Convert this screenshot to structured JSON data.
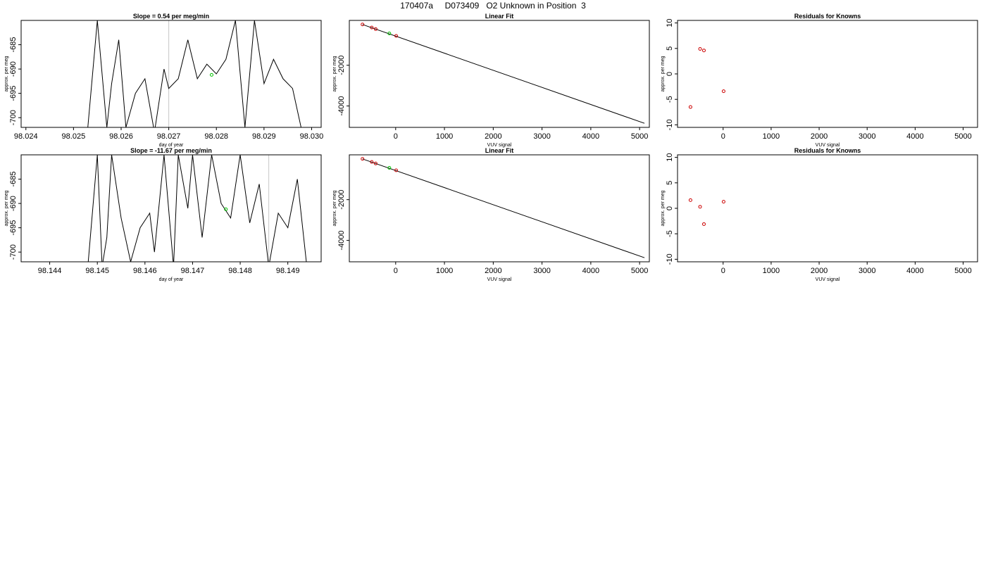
{
  "page": {
    "title": "170407a     D073409   O2 Unknown in Position  3"
  },
  "chart_data": [
    {
      "type": "line",
      "title": "Slope =   0.54  per meg/min",
      "xlabel": "day of year",
      "ylabel": "approx. per meg",
      "xlim": [
        98.0239,
        98.0302
      ],
      "ylim": [
        -702,
        -680
      ],
      "xticks": [
        98.024,
        98.025,
        98.026,
        98.027,
        98.028,
        98.029,
        98.03
      ],
      "xtick_labels": [
        "98.024",
        "98.025",
        "98.026",
        "98.027",
        "98.028",
        "98.029",
        "98.030"
      ],
      "yticks": [
        -700,
        -695,
        -690,
        -685
      ],
      "vlines": [
        98.027
      ],
      "x": [
        98.0253,
        98.0255,
        98.0257,
        98.0258,
        98.02595,
        98.0261,
        98.0263,
        98.0265,
        98.0267,
        98.0269,
        98.027,
        98.0272,
        98.0274,
        98.0276,
        98.0278,
        98.028,
        98.0282,
        98.0284,
        98.0286,
        98.0288,
        98.029,
        98.0292,
        98.0294,
        98.0296,
        98.0298
      ],
      "y": [
        -702,
        -680,
        -702,
        -693,
        -684,
        -702,
        -695,
        -692,
        -703,
        -690,
        -694,
        -692,
        -684,
        -692,
        -689,
        -691,
        -688,
        -680,
        -702,
        -680,
        -693,
        -688,
        -692,
        -694,
        -703
      ],
      "points": [
        {
          "x": 98.0279,
          "y": -691.2,
          "color": "#00c000"
        }
      ]
    },
    {
      "type": "scatter",
      "title": "Linear Fit",
      "xlabel": "VUV signal",
      "ylabel": "approx. per meg",
      "xlim": [
        -950,
        5200
      ],
      "ylim": [
        -5050,
        200
      ],
      "xticks": [
        0,
        1000,
        2000,
        3000,
        4000,
        5000
      ],
      "xtick_labels": [
        "0",
        "1000",
        "2000",
        "3000",
        "4000",
        "5000"
      ],
      "yticks": [
        -4000,
        -2000
      ],
      "yticks_labels": [
        "-4000",
        "-2000"
      ],
      "line": {
        "x": [
          -680,
          5100
        ],
        "y": [
          0,
          -4850
        ]
      },
      "points": [
        {
          "x": -680,
          "y": 0,
          "color": "#cc0000"
        },
        {
          "x": -490,
          "y": -150,
          "color": "#cc0000"
        },
        {
          "x": -410,
          "y": -225,
          "color": "#cc0000"
        },
        {
          "x": -130,
          "y": -440,
          "color": "#00c000"
        },
        {
          "x": 10,
          "y": -560,
          "color": "#cc0000"
        }
      ]
    },
    {
      "type": "scatter",
      "title": "Residuals for Knowns",
      "xlabel": "VUV signal",
      "ylabel": "approx. per meg",
      "xlim": [
        -950,
        5300
      ],
      "ylim": [
        -10.5,
        10.5
      ],
      "xticks": [
        0,
        1000,
        2000,
        3000,
        4000,
        5000
      ],
      "xtick_labels": [
        "0",
        "1000",
        "2000",
        "3000",
        "4000",
        "5000"
      ],
      "yticks": [
        -10,
        -5,
        0,
        5,
        10
      ],
      "points": [
        {
          "x": -680,
          "y": -6.5,
          "color": "#cc0000"
        },
        {
          "x": -480,
          "y": 4.9,
          "color": "#cc0000"
        },
        {
          "x": -400,
          "y": 4.6,
          "color": "#cc0000"
        },
        {
          "x": 10,
          "y": -3.4,
          "color": "#cc0000"
        }
      ]
    },
    {
      "type": "line",
      "title": "Slope =   -11.67  per meg/min",
      "xlabel": "day of year",
      "ylabel": "approx. per meg",
      "xlim": [
        98.1434,
        98.1497
      ],
      "ylim": [
        -702,
        -680
      ],
      "xticks": [
        98.144,
        98.145,
        98.146,
        98.147,
        98.148,
        98.149
      ],
      "xtick_labels": [
        "98.144",
        "98.145",
        "98.146",
        "98.147",
        "98.148",
        "98.149"
      ],
      "yticks": [
        -700,
        -695,
        -690,
        -685
      ],
      "vlines": [
        98.1486
      ],
      "x": [
        98.1448,
        98.145,
        98.1451,
        98.1452,
        98.1453,
        98.1455,
        98.1457,
        98.1459,
        98.1461,
        98.1462,
        98.1464,
        98.1466,
        98.1467,
        98.1469,
        98.147,
        98.1472,
        98.1474,
        98.1476,
        98.1478,
        98.148,
        98.1482,
        98.1484,
        98.1486,
        98.1488,
        98.149,
        98.1492,
        98.1494
      ],
      "y": [
        -703,
        -680,
        -703,
        -697,
        -680,
        -693,
        -702,
        -695,
        -692,
        -700,
        -680,
        -703,
        -680,
        -691,
        -680,
        -697,
        -680,
        -690,
        -693,
        -680,
        -694,
        -686,
        -703,
        -692,
        -695,
        -685,
        -703
      ],
      "points": [
        {
          "x": 98.1477,
          "y": -691.2,
          "color": "#00c000"
        }
      ]
    },
    {
      "type": "scatter",
      "title": "Linear Fit",
      "xlabel": "VUV signal",
      "ylabel": "approx. per meg",
      "xlim": [
        -950,
        5200
      ],
      "ylim": [
        -5050,
        200
      ],
      "xticks": [
        0,
        1000,
        2000,
        3000,
        4000,
        5000
      ],
      "xtick_labels": [
        "0",
        "1000",
        "2000",
        "3000",
        "4000",
        "5000"
      ],
      "yticks": [
        -4000,
        -2000
      ],
      "yticks_labels": [
        "-4000",
        "-2000"
      ],
      "line": {
        "x": [
          -680,
          5100
        ],
        "y": [
          0,
          -4850
        ]
      },
      "points": [
        {
          "x": -680,
          "y": 0,
          "color": "#cc0000"
        },
        {
          "x": -490,
          "y": -150,
          "color": "#cc0000"
        },
        {
          "x": -410,
          "y": -225,
          "color": "#cc0000"
        },
        {
          "x": -130,
          "y": -440,
          "color": "#00c000"
        },
        {
          "x": 10,
          "y": -560,
          "color": "#cc0000"
        }
      ]
    },
    {
      "type": "scatter",
      "title": "Residuals for Knowns",
      "xlabel": "VUV signal",
      "ylabel": "approx. per meg",
      "xlim": [
        -950,
        5300
      ],
      "ylim": [
        -10.5,
        10.5
      ],
      "xticks": [
        0,
        1000,
        2000,
        3000,
        4000,
        5000
      ],
      "xtick_labels": [
        "0",
        "1000",
        "2000",
        "3000",
        "4000",
        "5000"
      ],
      "yticks": [
        -10,
        -5,
        0,
        5,
        10
      ],
      "points": [
        {
          "x": -680,
          "y": 1.6,
          "color": "#cc0000"
        },
        {
          "x": -480,
          "y": 0.3,
          "color": "#cc0000"
        },
        {
          "x": -400,
          "y": -3.1,
          "color": "#cc0000"
        },
        {
          "x": 10,
          "y": 1.3,
          "color": "#cc0000"
        }
      ]
    }
  ]
}
